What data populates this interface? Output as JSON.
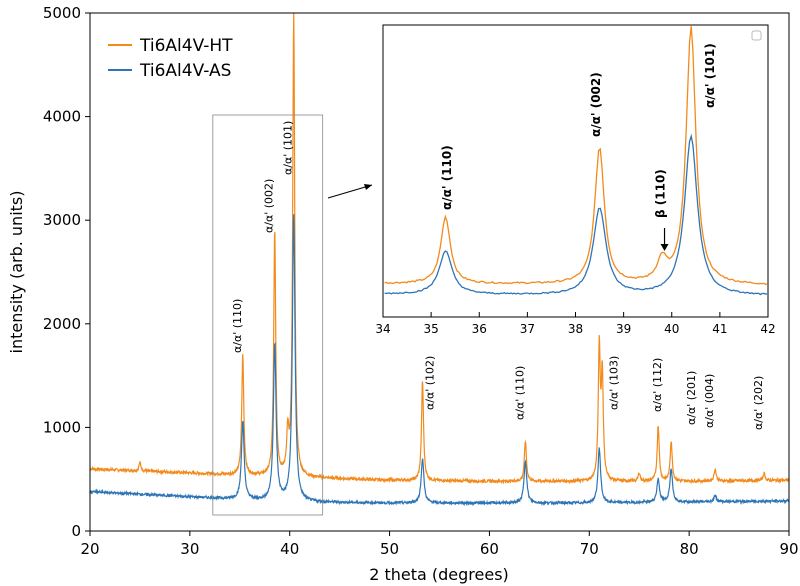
{
  "chart_data": [
    {
      "type": "line",
      "xlabel": "2 theta (degrees)",
      "ylabel": "intensity (arb. units)",
      "xlim": [
        20,
        90
      ],
      "ylim": [
        0,
        5000
      ],
      "xticks": [
        20,
        30,
        40,
        50,
        60,
        70,
        80,
        90
      ],
      "yticks": [
        0,
        1000,
        2000,
        3000,
        4000,
        5000
      ],
      "legend": {
        "position": "top-left",
        "entries": [
          "Ti6Al4V-HT",
          "Ti6Al4V-AS"
        ]
      },
      "colors": {
        "HT": "#f28a1c",
        "AS": "#2e75b6"
      },
      "series": [
        {
          "name": "Ti6Al4V-HT",
          "baseline": [
            [
              20,
              600
            ],
            [
              30,
              560
            ],
            [
              40,
              520
            ],
            [
              50,
              490
            ],
            [
              60,
              480
            ],
            [
              70,
              480
            ],
            [
              80,
              480
            ],
            [
              90,
              490
            ]
          ],
          "peaks": [
            [
              25.0,
              660
            ],
            [
              35.3,
              1700
            ],
            [
              38.5,
              2900
            ],
            [
              39.8,
              900
            ],
            [
              40.4,
              5000
            ],
            [
              53.3,
              1450
            ],
            [
              63.6,
              870
            ],
            [
              71.0,
              1750
            ],
            [
              71.3,
              1480
            ],
            [
              75.0,
              560
            ],
            [
              76.9,
              1020
            ],
            [
              78.2,
              870
            ],
            [
              82.6,
              600
            ],
            [
              87.5,
              560
            ]
          ]
        },
        {
          "name": "Ti6Al4V-AS",
          "baseline": [
            [
              20,
              380
            ],
            [
              30,
              330
            ],
            [
              40,
              280
            ],
            [
              50,
              270
            ],
            [
              60,
              270
            ],
            [
              70,
              270
            ],
            [
              80,
              280
            ],
            [
              90,
              290
            ]
          ],
          "peaks": [
            [
              35.3,
              1060
            ],
            [
              38.5,
              1800
            ],
            [
              40.4,
              3050
            ],
            [
              53.3,
              700
            ],
            [
              63.6,
              680
            ],
            [
              71.0,
              800
            ],
            [
              76.9,
              500
            ],
            [
              78.2,
              600
            ],
            [
              82.6,
              340
            ]
          ]
        }
      ],
      "annotations": [
        {
          "text": "α/α' (110)",
          "x": 35.3
        },
        {
          "text": "α/α' (002)",
          "x": 38.5
        },
        {
          "text": "α/α' (101)",
          "x": 40.4
        },
        {
          "text": "α/α' (102)",
          "x": 53.3
        },
        {
          "text": "α/α' (110)",
          "x": 63.6
        },
        {
          "text": "α/α' (103)",
          "x": 71.0
        },
        {
          "text": "α/α' (112)",
          "x": 76.9
        },
        {
          "text": "α/α' (201)",
          "x": 78.2
        },
        {
          "text": "α/α' (004)",
          "x": 82.6
        },
        {
          "text": "α/α' (202)",
          "x": 87.5
        }
      ]
    },
    {
      "type": "line",
      "role": "inset",
      "zoom_region": {
        "x": [
          32.3,
          43.3
        ]
      },
      "xlim": [
        34,
        42
      ],
      "xticks": [
        34,
        35,
        36,
        37,
        38,
        39,
        40,
        41,
        42
      ],
      "annotations": [
        {
          "text": "α/α' (110)",
          "x": 35.45
        },
        {
          "text": "α/α' (002)",
          "x": 38.55
        },
        {
          "text": "α/α' (101)",
          "x": 40.5
        },
        {
          "text": "β (110)",
          "x": 39.85
        }
      ]
    }
  ]
}
